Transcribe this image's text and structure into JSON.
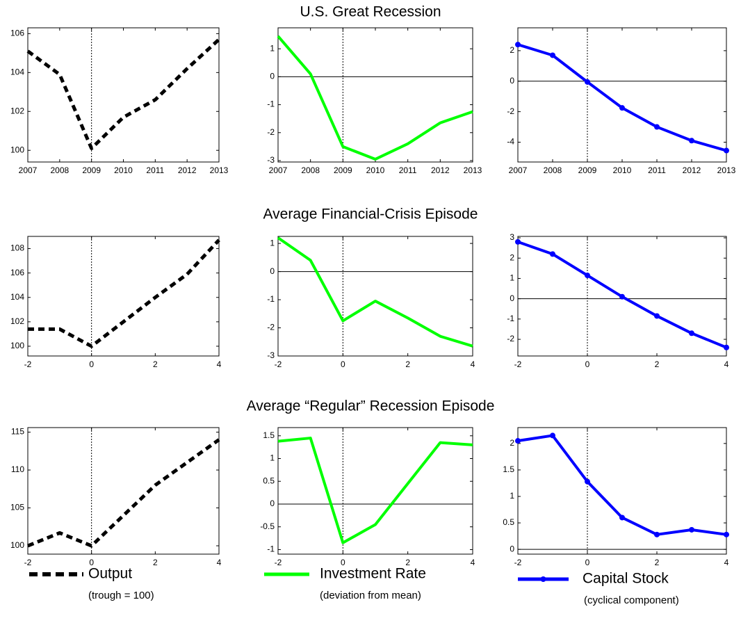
{
  "row_titles": [
    "U.S. Great Recession",
    "Average Financial-Crisis Episode",
    "Average “Regular” Recession Episode"
  ],
  "legend": [
    {
      "name": "Output",
      "note": "(trough = 100)",
      "color": "#000000",
      "dashed": true,
      "markers": false
    },
    {
      "name": "Investment Rate",
      "note": "(deviation from mean)",
      "color": "#00ff00",
      "dashed": false,
      "markers": false
    },
    {
      "name": "Capital Stock",
      "note": "(cyclical component)",
      "color": "#0000ff",
      "dashed": false,
      "markers": true
    }
  ],
  "chart_data": [
    {
      "type": "line",
      "x": [
        2007,
        2008,
        2009,
        2010,
        2011,
        2012,
        2013
      ],
      "xlim": [
        2007,
        2013
      ],
      "xticks": [
        2007,
        2008,
        2009,
        2010,
        2011,
        2012,
        2013
      ],
      "ylim": [
        99.4,
        106.3
      ],
      "yticks": [
        100,
        102,
        104,
        106
      ],
      "vline": 2009,
      "series": [
        {
          "color": "#000000",
          "dashed": true,
          "markers": false,
          "values": [
            105.1,
            103.9,
            100.1,
            101.7,
            102.6,
            104.2,
            105.7
          ]
        }
      ]
    },
    {
      "type": "line",
      "x": [
        2007,
        2008,
        2009,
        2010,
        2011,
        2012,
        2013
      ],
      "xlim": [
        2007,
        2013
      ],
      "xticks": [
        2007,
        2008,
        2009,
        2010,
        2011,
        2012,
        2013
      ],
      "ylim": [
        -3.05,
        1.75
      ],
      "yticks": [
        -3,
        -2,
        -1,
        0,
        1
      ],
      "vline": 2009,
      "hline": 0,
      "series": [
        {
          "color": "#00ff00",
          "dashed": false,
          "markers": false,
          "values": [
            1.45,
            0.1,
            -2.5,
            -2.95,
            -2.4,
            -1.65,
            -1.25
          ]
        }
      ]
    },
    {
      "type": "line",
      "x": [
        2007,
        2008,
        2009,
        2010,
        2011,
        2012,
        2013
      ],
      "xlim": [
        2007,
        2013
      ],
      "xticks": [
        2007,
        2008,
        2009,
        2010,
        2011,
        2012,
        2013
      ],
      "ylim": [
        -5.3,
        3.5
      ],
      "yticks": [
        -4,
        -2,
        0,
        2
      ],
      "vline": 2009,
      "hline": 0,
      "series": [
        {
          "color": "#0000ff",
          "dashed": false,
          "markers": true,
          "values": [
            2.4,
            1.7,
            -0.05,
            -1.75,
            -3.0,
            -3.9,
            -4.55
          ]
        }
      ]
    },
    {
      "type": "line",
      "x": [
        -2,
        -1,
        0,
        1,
        2,
        3,
        4
      ],
      "xlim": [
        -2,
        4
      ],
      "xticks": [
        -2,
        0,
        2,
        4
      ],
      "ylim": [
        99.2,
        109
      ],
      "yticks": [
        100,
        102,
        104,
        106,
        108
      ],
      "vline": 0,
      "series": [
        {
          "color": "#000000",
          "dashed": true,
          "markers": false,
          "values": [
            101.4,
            101.4,
            100.0,
            102.0,
            104.0,
            105.9,
            108.7
          ]
        }
      ]
    },
    {
      "type": "line",
      "x": [
        -2,
        -1,
        0,
        1,
        2,
        3,
        4
      ],
      "xlim": [
        -2,
        4
      ],
      "xticks": [
        -2,
        0,
        2,
        4
      ],
      "ylim": [
        -3,
        1.25
      ],
      "yticks": [
        -3,
        -2,
        -1,
        0,
        1
      ],
      "vline": 0,
      "hline": 0,
      "series": [
        {
          "color": "#00ff00",
          "dashed": false,
          "markers": false,
          "values": [
            1.2,
            0.4,
            -1.75,
            -1.05,
            -1.65,
            -2.3,
            -2.65
          ]
        }
      ]
    },
    {
      "type": "line",
      "x": [
        -2,
        -1,
        0,
        1,
        2,
        3,
        4
      ],
      "xlim": [
        -2,
        4
      ],
      "xticks": [
        -2,
        0,
        2,
        4
      ],
      "ylim": [
        -2.82,
        3.07
      ],
      "yticks": [
        -2,
        -1,
        0,
        1,
        2,
        3
      ],
      "vline": 0,
      "hline": 0,
      "series": [
        {
          "color": "#0000ff",
          "dashed": false,
          "markers": true,
          "values": [
            2.8,
            2.2,
            1.15,
            0.1,
            -0.85,
            -1.7,
            -2.4
          ]
        }
      ]
    },
    {
      "type": "line",
      "x": [
        -2,
        -1,
        0,
        1,
        2,
        3,
        4
      ],
      "xlim": [
        -2,
        4
      ],
      "xticks": [
        -2,
        0,
        2,
        4
      ],
      "ylim": [
        98.9,
        115.6
      ],
      "yticks": [
        100,
        105,
        110,
        115
      ],
      "vline": 0,
      "series": [
        {
          "color": "#000000",
          "dashed": true,
          "markers": false,
          "values": [
            100,
            101.7,
            100,
            104,
            108,
            111,
            114
          ]
        }
      ]
    },
    {
      "type": "line",
      "x": [
        -2,
        -1,
        0,
        1,
        2,
        3,
        4
      ],
      "xlim": [
        -2,
        4
      ],
      "xticks": [
        -2,
        0,
        2,
        4
      ],
      "ylim": [
        -1.1,
        1.68
      ],
      "yticks": [
        -1,
        -0.5,
        0,
        0.5,
        1,
        1.5
      ],
      "vline": 0,
      "hline": 0,
      "series": [
        {
          "color": "#00ff00",
          "dashed": false,
          "markers": false,
          "values": [
            1.38,
            1.45,
            -0.85,
            -0.45,
            0.45,
            1.35,
            1.3
          ]
        }
      ]
    },
    {
      "type": "line",
      "x": [
        -2,
        -1,
        0,
        1,
        2,
        3,
        4
      ],
      "xlim": [
        -2,
        4
      ],
      "xticks": [
        -2,
        0,
        2,
        4
      ],
      "ylim": [
        -0.09,
        2.3
      ],
      "yticks": [
        0,
        0.5,
        1,
        1.5,
        2
      ],
      "vline": 0,
      "hline": 0,
      "series": [
        {
          "color": "#0000ff",
          "dashed": false,
          "markers": true,
          "values": [
            2.05,
            2.15,
            1.28,
            0.6,
            0.28,
            0.37,
            0.28
          ]
        }
      ]
    }
  ]
}
